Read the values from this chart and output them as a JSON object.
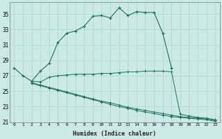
{
  "xlabel": "Humidex (Indice chaleur)",
  "ylabel": "",
  "bg_color": "#cceae4",
  "grid_color": "#a8d8ce",
  "line_color": "#1a6e5e",
  "xlim": [
    -0.5,
    23.5
  ],
  "ylim": [
    21,
    36.5
  ],
  "yticks": [
    21,
    23,
    25,
    27,
    29,
    31,
    33,
    35
  ],
  "xticks": [
    0,
    1,
    2,
    3,
    4,
    5,
    6,
    7,
    8,
    9,
    10,
    11,
    12,
    13,
    14,
    15,
    16,
    17,
    18,
    19,
    20,
    21,
    22,
    23
  ],
  "line1_x": [
    0,
    1,
    2,
    3,
    4,
    5,
    6,
    7,
    8,
    9,
    10,
    11,
    12,
    13,
    14,
    15,
    16,
    17,
    18
  ],
  "line1_y": [
    28.0,
    27.0,
    26.3,
    27.6,
    28.6,
    31.3,
    32.5,
    32.8,
    33.4,
    34.7,
    34.8,
    34.5,
    35.8,
    34.8,
    35.3,
    35.2,
    35.2,
    32.5,
    28.0
  ],
  "line2_x": [
    2,
    3,
    4,
    5,
    6,
    7,
    8,
    9,
    10,
    11,
    12,
    13,
    14,
    15,
    16,
    17,
    18,
    19,
    20,
    21,
    22,
    23
  ],
  "line2_y": [
    26.3,
    26.2,
    26.8,
    27.0,
    27.1,
    27.2,
    27.2,
    27.2,
    27.3,
    27.3,
    27.4,
    27.5,
    27.5,
    27.6,
    27.6,
    27.6,
    27.5,
    22.0,
    21.8,
    21.6,
    21.5,
    21.3
  ],
  "line3_x": [
    2,
    3,
    4,
    5,
    6,
    7,
    8,
    9,
    10,
    11,
    12,
    13,
    14,
    15,
    16,
    17,
    18,
    19,
    20,
    21,
    22,
    23
  ],
  "line3_y": [
    26.1,
    25.8,
    25.5,
    25.2,
    24.9,
    24.6,
    24.3,
    24.0,
    23.7,
    23.5,
    23.2,
    22.9,
    22.7,
    22.5,
    22.3,
    22.1,
    21.9,
    21.7,
    21.6,
    21.5,
    21.4,
    21.2
  ],
  "line4_x": [
    2,
    3,
    4,
    5,
    6,
    7,
    8,
    9,
    10,
    11,
    12,
    13,
    14,
    15,
    16,
    17,
    18,
    19,
    20,
    21,
    22,
    23
  ],
  "line4_y": [
    26.0,
    25.7,
    25.4,
    25.1,
    24.8,
    24.5,
    24.2,
    23.9,
    23.6,
    23.3,
    23.0,
    22.8,
    22.5,
    22.3,
    22.1,
    21.9,
    21.7,
    21.6,
    21.5,
    21.4,
    21.3,
    21.1
  ]
}
